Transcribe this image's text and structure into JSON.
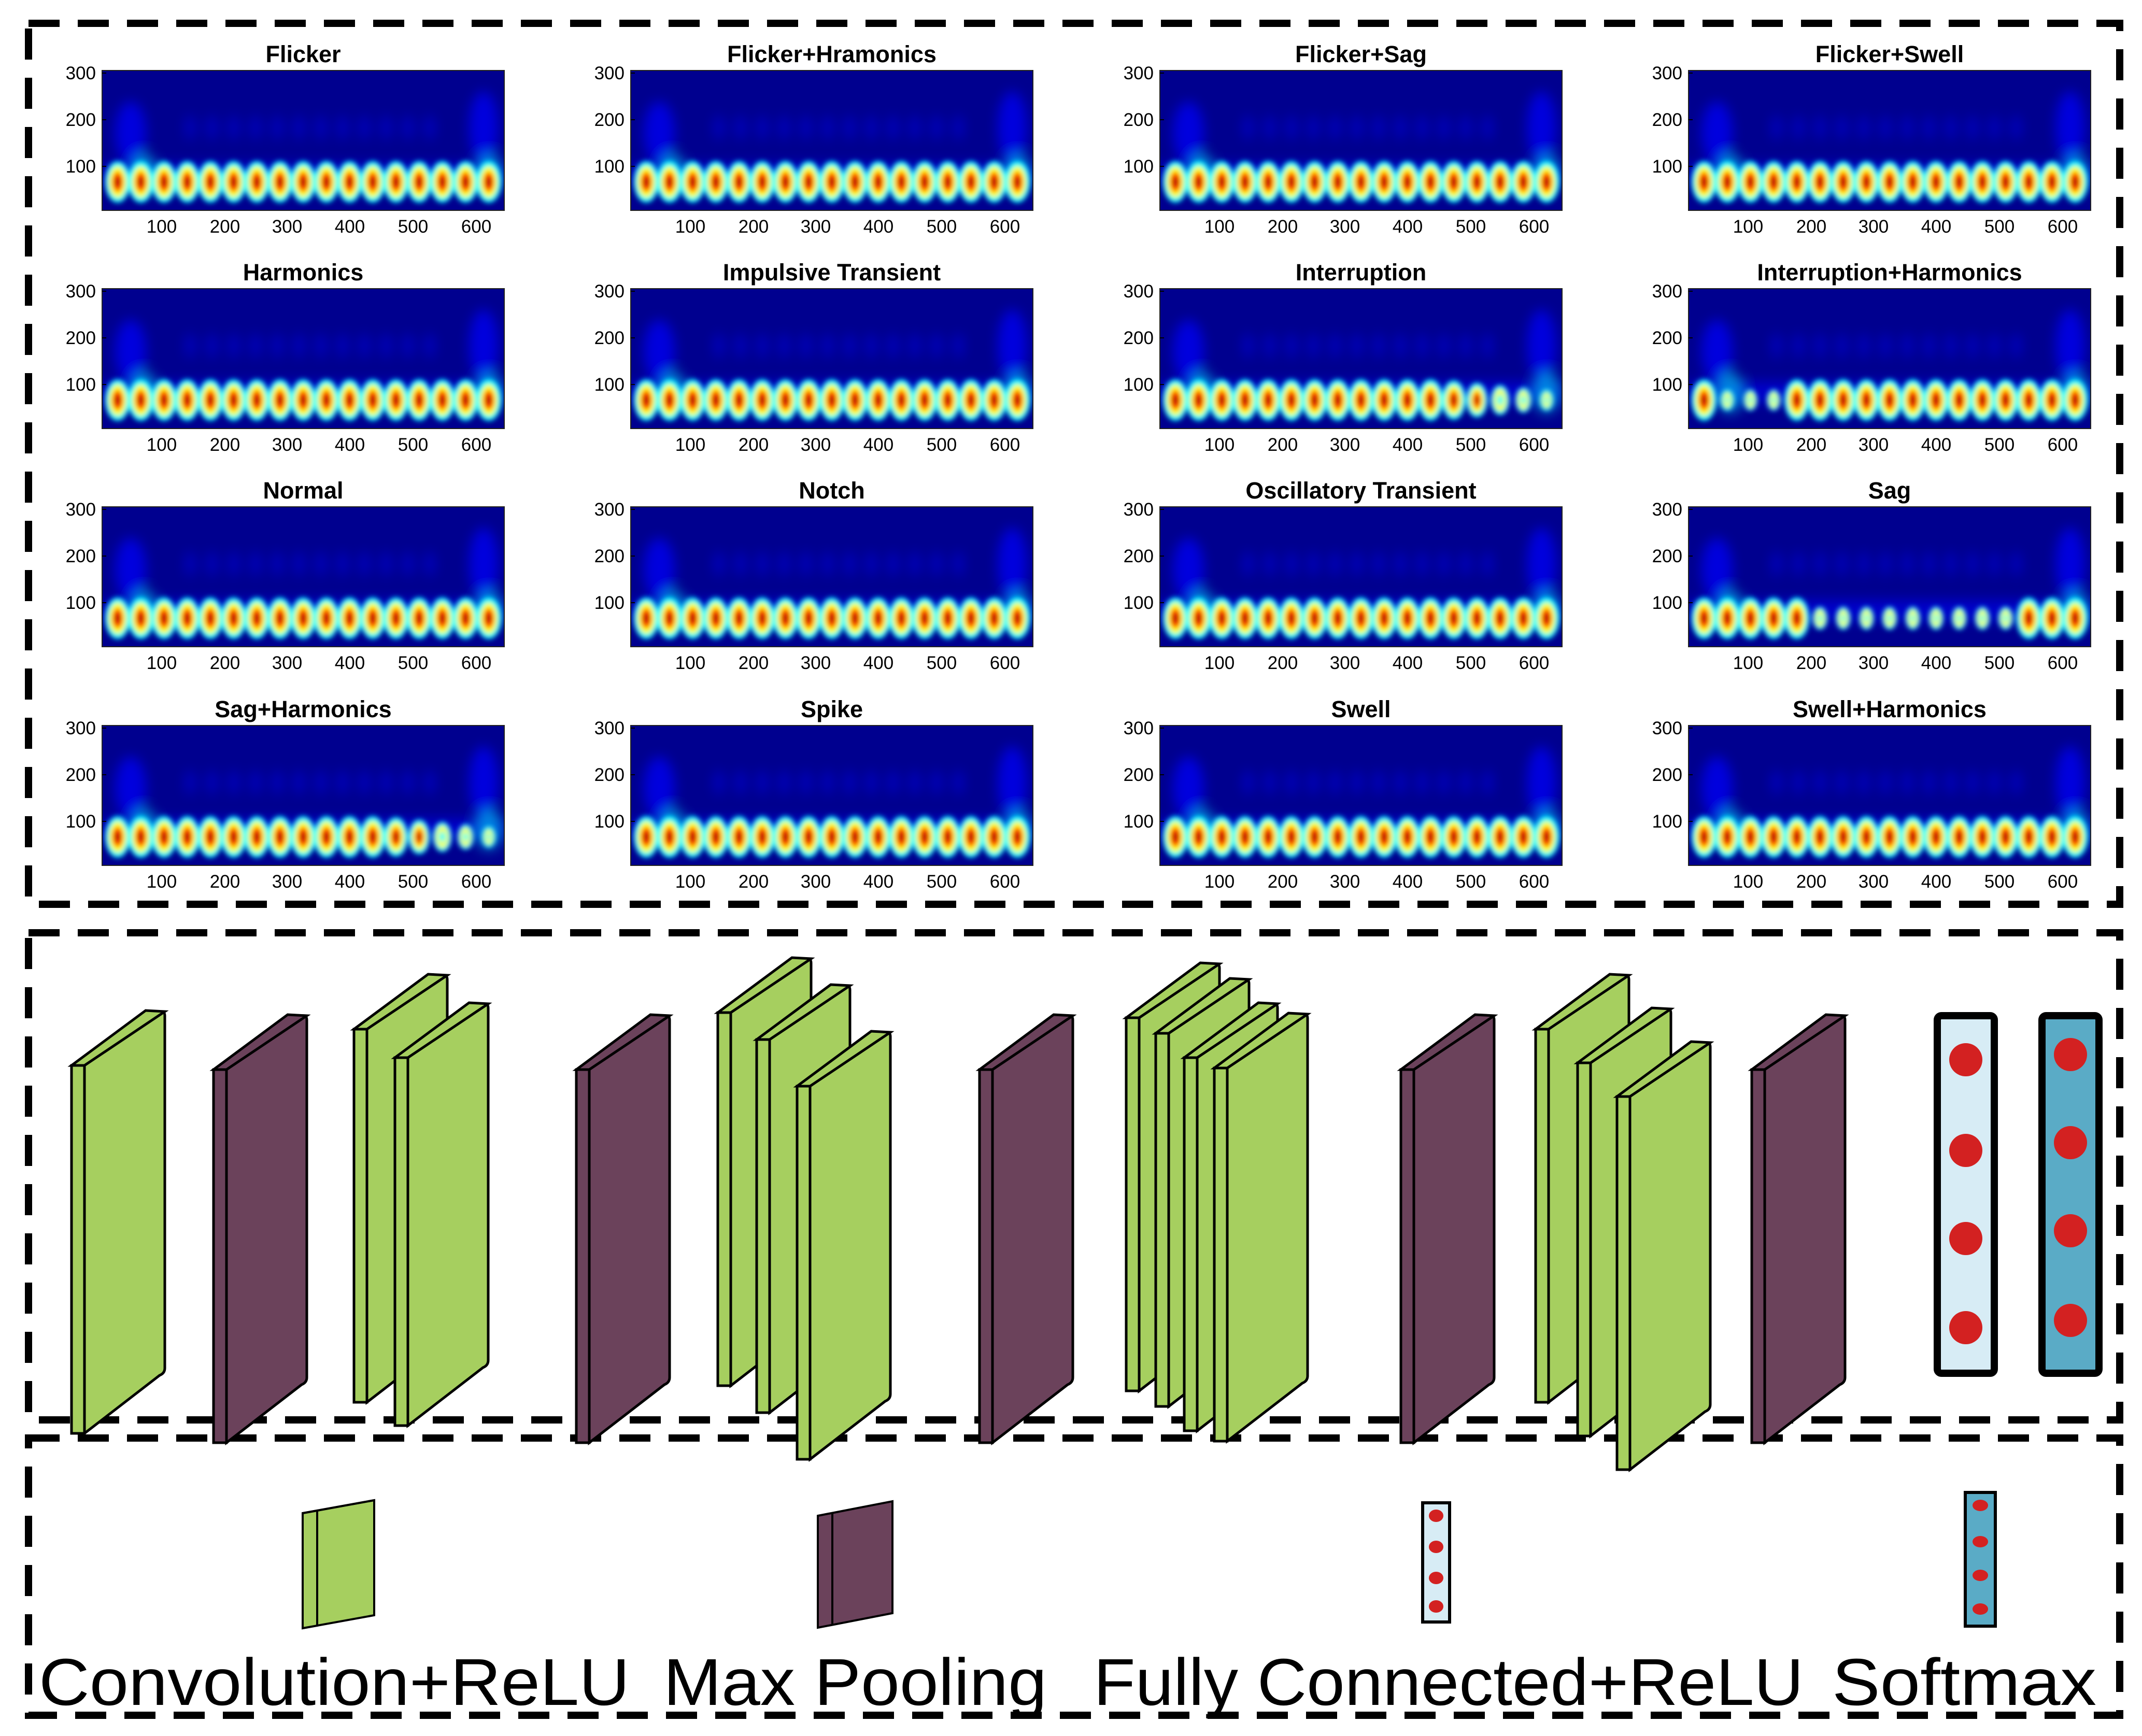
{
  "spectrograms": {
    "y_ticks": [
      "300",
      "200",
      "100"
    ],
    "x_ticks": [
      "100",
      "200",
      "300",
      "400",
      "500",
      "600"
    ],
    "colormap": [
      "#00008f",
      "#0000ff",
      "#00ffff",
      "#ffff00",
      "#ff0000",
      "#800000"
    ],
    "panels": [
      {
        "title": "Flicker",
        "variant": "normal"
      },
      {
        "title": "Flicker+Hramonics",
        "variant": "normal"
      },
      {
        "title": "Flicker+Sag",
        "variant": "normal"
      },
      {
        "title": "Flicker+Swell",
        "variant": "normal"
      },
      {
        "title": "Harmonics",
        "variant": "normal"
      },
      {
        "title": "Impulsive Transient",
        "variant": "normal"
      },
      {
        "title": "Interruption",
        "variant": "fade_end"
      },
      {
        "title": "Interruption+Harmonics",
        "variant": "break_start"
      },
      {
        "title": "Normal",
        "variant": "normal"
      },
      {
        "title": "Notch",
        "variant": "normal"
      },
      {
        "title": "Oscillatory Transient",
        "variant": "normal"
      },
      {
        "title": "Sag",
        "variant": "fade_mid"
      },
      {
        "title": "Sag+Harmonics",
        "variant": "fade_end"
      },
      {
        "title": "Spike",
        "variant": "normal"
      },
      {
        "title": "Swell",
        "variant": "normal"
      },
      {
        "title": "Swell+Harmonics",
        "variant": "normal"
      }
    ]
  },
  "architecture": {
    "colors": {
      "conv": "#a6cf5f",
      "pool": "#6b425b",
      "fc": "#d7ecf5",
      "softmax": "#5aabc6",
      "node": "#d32121",
      "outline": "#000000"
    },
    "sequence": [
      "conv",
      "pool",
      "conv-x2",
      "pool",
      "conv-x3",
      "pool",
      "conv-x4",
      "pool",
      "conv-x3",
      "pool",
      "fully-connected",
      "softmax"
    ]
  },
  "legend": {
    "items": [
      {
        "label": "Convolution+ReLU",
        "kind": "conv"
      },
      {
        "label": "Max Pooling",
        "kind": "pool"
      },
      {
        "label": "Fully Connected+ReLU",
        "kind": "fc"
      },
      {
        "label": "Softmax",
        "kind": "softmax"
      }
    ]
  }
}
